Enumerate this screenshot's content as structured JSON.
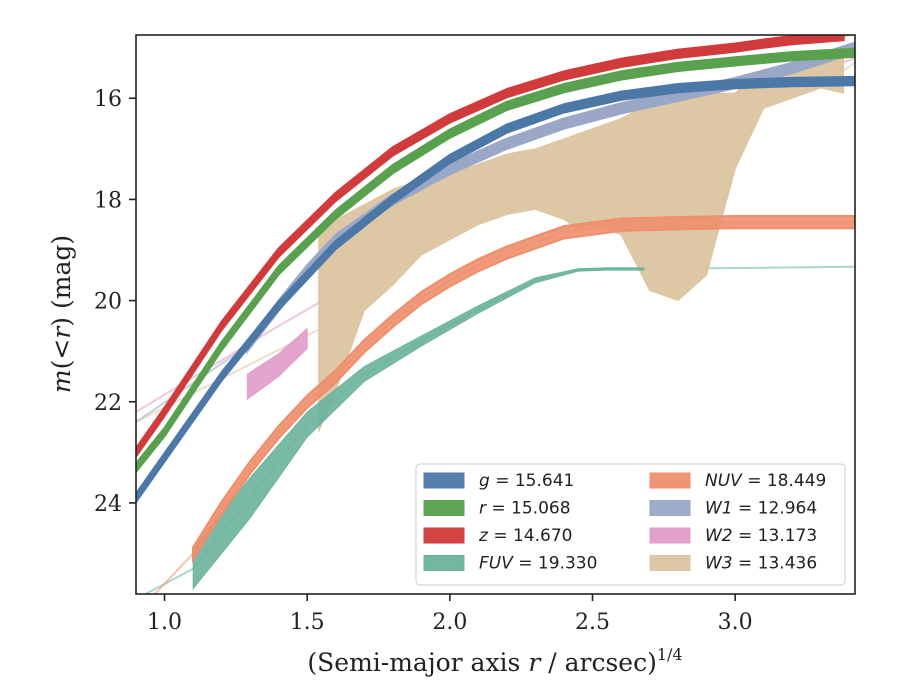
{
  "chart_data": {
    "type": "line",
    "xlabel_main": "(Semi-major axis ",
    "xlabel_var": "r",
    "xlabel_rest": " / arcsec)",
    "xlabel_sup": "1/4",
    "ylabel_var": "m",
    "ylabel_open": "(<",
    "ylabel_r": "r",
    "ylabel_close": ") (mag)",
    "xlim": [
      0.9,
      3.42
    ],
    "ylim": [
      25.8,
      14.75
    ],
    "y_inverted": true,
    "x_ticks": [
      1.0,
      1.5,
      2.0,
      2.5,
      3.0
    ],
    "x_tick_labels": [
      "1.0",
      "1.5",
      "2.0",
      "2.5",
      "3.0"
    ],
    "y_ticks": [
      16,
      18,
      20,
      22,
      24
    ],
    "y_tick_labels": [
      "16",
      "18",
      "20",
      "22",
      "24"
    ],
    "grid": false,
    "legend_position": "lower-right",
    "legend_columns": 2,
    "series": [
      {
        "name": "g",
        "legend_var": "g",
        "legend_value": "15.641",
        "color": "#4c78a8",
        "x": [
          0.9,
          1.0,
          1.2,
          1.4,
          1.6,
          1.8,
          2.0,
          2.2,
          2.4,
          2.6,
          2.8,
          3.0,
          3.2,
          3.42
        ],
        "y": [
          23.9,
          23.1,
          21.5,
          20.1,
          18.9,
          18.0,
          17.2,
          16.6,
          16.2,
          15.95,
          15.8,
          15.72,
          15.68,
          15.66
        ],
        "band": 0.08,
        "ext_lo": [
          0.9,
          24.0
        ],
        "ext_hi": [
          3.42,
          15.64
        ]
      },
      {
        "name": "r",
        "legend_var": "r",
        "legend_value": "15.068",
        "color": "#59a14f",
        "x": [
          0.9,
          1.0,
          1.2,
          1.4,
          1.6,
          1.8,
          2.0,
          2.2,
          2.4,
          2.6,
          2.8,
          3.0,
          3.2,
          3.42
        ],
        "y": [
          23.3,
          22.6,
          20.9,
          19.4,
          18.3,
          17.4,
          16.7,
          16.15,
          15.8,
          15.55,
          15.38,
          15.27,
          15.17,
          15.1
        ],
        "band": 0.08,
        "ext_lo": [
          0.9,
          23.4
        ],
        "ext_hi": [
          3.42,
          15.07
        ]
      },
      {
        "name": "z",
        "legend_var": "z",
        "legend_value": "14.670",
        "color": "#d13b3b",
        "x": [
          0.9,
          1.0,
          1.2,
          1.4,
          1.6,
          1.8,
          2.0,
          2.2,
          2.4,
          2.6,
          2.8,
          3.0,
          3.1,
          3.2,
          3.38
        ],
        "y": [
          23.0,
          22.2,
          20.5,
          19.05,
          17.95,
          17.05,
          16.4,
          15.9,
          15.55,
          15.3,
          15.12,
          15.0,
          14.92,
          14.85,
          14.77
        ],
        "band": 0.08,
        "ext_lo": [
          0.9,
          23.1
        ],
        "ext_hi": [
          3.42,
          14.72
        ]
      },
      {
        "name": "FUV",
        "legend_var": "FUV",
        "legend_value": "19.330",
        "color": "#6ab39c",
        "x": [
          1.1,
          1.3,
          1.5,
          1.7,
          1.9,
          2.1,
          2.3,
          2.45,
          2.55,
          2.68
        ],
        "y_upper": [
          24.9,
          23.5,
          22.2,
          21.3,
          20.7,
          20.1,
          19.55,
          19.37,
          19.35,
          19.35
        ],
        "y_lower": [
          25.7,
          24.3,
          22.7,
          21.6,
          20.9,
          20.25,
          19.65,
          19.42,
          19.4,
          19.4
        ],
        "ext_lo": [
          0.9,
          25.9
        ],
        "ext_hi": [
          3.42,
          19.33
        ]
      },
      {
        "name": "NUV",
        "legend_var": "NUV",
        "legend_value": "18.449",
        "color": "#ee8f6d",
        "x": [
          1.1,
          1.2,
          1.3,
          1.4,
          1.5,
          1.6,
          1.7,
          1.8,
          1.9,
          2.0,
          2.1,
          2.2,
          2.3,
          2.4,
          2.6,
          2.8,
          3.0,
          3.42
        ],
        "y": [
          25.0,
          24.1,
          23.3,
          22.6,
          22.0,
          21.5,
          20.9,
          20.4,
          19.95,
          19.6,
          19.3,
          19.05,
          18.85,
          18.65,
          18.5,
          18.47,
          18.45,
          18.45
        ],
        "band": 0.12,
        "ext_lo": [
          0.9,
          26.2
        ],
        "ext_hi": [
          3.42,
          18.45
        ]
      },
      {
        "name": "W1",
        "legend_var": "W1",
        "legend_value": "12.964",
        "color": "#9aa7c7",
        "x": [
          1.29,
          1.4,
          1.5,
          1.6,
          1.8,
          2.0,
          2.2,
          2.4,
          2.6,
          2.8,
          3.0,
          3.2,
          3.42
        ],
        "y": [
          20.9,
          20.1,
          19.4,
          18.8,
          18.0,
          17.4,
          16.9,
          16.5,
          16.2,
          15.95,
          15.7,
          15.4,
          15.0
        ],
        "band": 0.1,
        "ext_lo": [
          0.9,
          22.4
        ],
        "ext_hi": [
          3.42,
          15.0
        ]
      },
      {
        "name": "W2",
        "legend_var": "W2",
        "legend_value": "13.173",
        "color": "#e09bc8",
        "x": [
          1.29,
          1.4,
          1.5
        ],
        "y_upper": [
          21.45,
          21.05,
          20.55
        ],
        "y_lower": [
          21.95,
          21.5,
          20.95
        ],
        "ext_lo": [
          0.9,
          22.2
        ],
        "ext_hi": [
          3.42,
          15.2
        ],
        "ext_mid": [
          [
            1.4,
            20.5
          ],
          [
            1.8,
            19.2
          ],
          [
            2.2,
            18.2
          ],
          [
            2.6,
            17.2
          ],
          [
            3.0,
            16.2
          ]
        ]
      },
      {
        "name": "W3",
        "legend_var": "W3",
        "legend_value": "13.436",
        "color": "#dcc4a0",
        "x": [
          1.54,
          1.6,
          1.7,
          1.8,
          1.9,
          2.0,
          2.1,
          2.2,
          2.3,
          2.4,
          2.45,
          2.5,
          2.6,
          2.7,
          2.8,
          2.9,
          3.0,
          3.05,
          3.1,
          3.2,
          3.3,
          3.38
        ],
        "y_upper": [
          18.55,
          18.4,
          18.1,
          17.8,
          17.6,
          17.5,
          17.3,
          17.1,
          17.0,
          16.8,
          16.7,
          16.6,
          16.4,
          16.1,
          16.0,
          15.9,
          15.9,
          15.6,
          15.6,
          15.5,
          15.1,
          15.0
        ],
        "y_lower": [
          22.6,
          21.8,
          20.2,
          19.7,
          19.1,
          18.8,
          18.5,
          18.3,
          18.2,
          18.4,
          18.6,
          18.5,
          18.7,
          19.8,
          20.0,
          19.5,
          17.4,
          16.8,
          16.2,
          16.0,
          15.8,
          15.9
        ],
        "ext_lo": [
          0.9,
          22.4
        ],
        "ext_hi": [
          3.42,
          15.3
        ]
      }
    ]
  }
}
